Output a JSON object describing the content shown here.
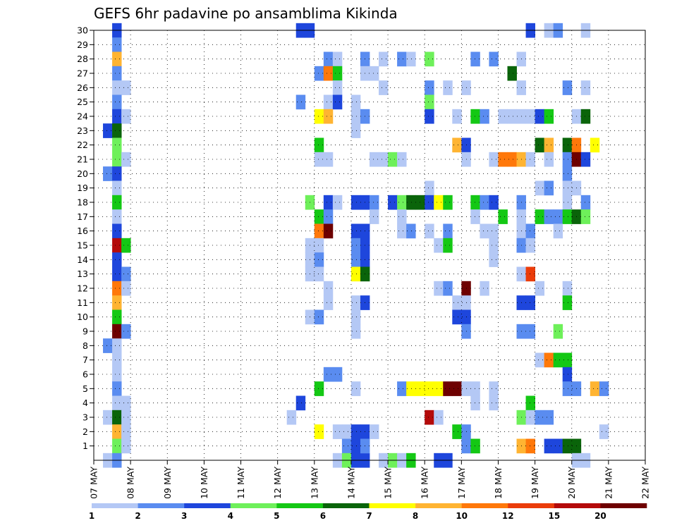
{
  "chart_data": {
    "type": "heatmap",
    "title": "GEFS 6hr padavine po ansamblima Kikinda",
    "xlabel": "",
    "ylabel": "",
    "x_ticks": [
      "07 MAY",
      "08 MAY",
      "09 MAY",
      "10 MAY",
      "11 MAY",
      "12 MAY",
      "13 MAY",
      "14 MAY",
      "15 MAY",
      "16 MAY",
      "17 MAY",
      "18 MAY",
      "19 MAY",
      "20 MAY",
      "21 MAY",
      "22 MAY"
    ],
    "y_ticks": [
      "1",
      "2",
      "3",
      "4",
      "5",
      "6",
      "7",
      "8",
      "9",
      "10",
      "11",
      "12",
      "13",
      "14",
      "15",
      "16",
      "17",
      "18",
      "19",
      "20",
      "21",
      "22",
      "23",
      "24",
      "25",
      "26",
      "27",
      "28",
      "29",
      "30"
    ],
    "xlim": [
      0,
      15
    ],
    "ylim": [
      0,
      30
    ],
    "grid": true,
    "legend": {
      "placement": "bottom",
      "labels": [
        "1",
        "2",
        "3",
        "4",
        "5",
        "6",
        "7",
        "8",
        "10",
        "12",
        "15",
        "20"
      ],
      "colors": [
        "#b4c8f5",
        "#5a8cf0",
        "#1e46dc",
        "#6ef05a",
        "#14c814",
        "#0a640a",
        "#ffff00",
        "#ffb432",
        "#ff780a",
        "#eb3c0a",
        "#b40a0a",
        "#6e0000"
      ]
    },
    "cells": [
      [
        0.625,
        30,
        3
      ],
      [
        0.625,
        29,
        2
      ],
      [
        0.625,
        28,
        8
      ],
      [
        0.625,
        27,
        2
      ],
      [
        0.625,
        26,
        1
      ],
      [
        0.875,
        26,
        1
      ],
      [
        0.625,
        25,
        2
      ],
      [
        0.625,
        24,
        3
      ],
      [
        0.875,
        24,
        1
      ],
      [
        0.375,
        23,
        3
      ],
      [
        0.625,
        23,
        6
      ],
      [
        0.625,
        22,
        4
      ],
      [
        0.625,
        21,
        4
      ],
      [
        0.875,
        21,
        1
      ],
      [
        0.375,
        20,
        2
      ],
      [
        0.625,
        20,
        3
      ],
      [
        0.625,
        19,
        1
      ],
      [
        0.625,
        18,
        5
      ],
      [
        0.625,
        17,
        1
      ],
      [
        0.625,
        16,
        3
      ],
      [
        0.625,
        15,
        11
      ],
      [
        0.875,
        15,
        5
      ],
      [
        0.625,
        14,
        3
      ],
      [
        0.625,
        13,
        3
      ],
      [
        0.875,
        13,
        2
      ],
      [
        0.625,
        12,
        9
      ],
      [
        0.875,
        12,
        1
      ],
      [
        0.625,
        11,
        8
      ],
      [
        0.625,
        10,
        5
      ],
      [
        0.625,
        9,
        12
      ],
      [
        0.875,
        9,
        2
      ],
      [
        0.375,
        8,
        2
      ],
      [
        0.625,
        8,
        1
      ],
      [
        0.625,
        7,
        1
      ],
      [
        0.625,
        6,
        1
      ],
      [
        0.625,
        5,
        2
      ],
      [
        0.625,
        4,
        1
      ],
      [
        0.875,
        4,
        1
      ],
      [
        0.375,
        3,
        1
      ],
      [
        0.625,
        3,
        6
      ],
      [
        0.875,
        3,
        1
      ],
      [
        0.625,
        2,
        8
      ],
      [
        0.875,
        2,
        1
      ],
      [
        0.625,
        1,
        4
      ],
      [
        0.875,
        1,
        1
      ],
      [
        0.375,
        0,
        1
      ],
      [
        0.625,
        0,
        2
      ],
      [
        5.625,
        30,
        3
      ],
      [
        5.875,
        30,
        3
      ],
      [
        6.375,
        28,
        2
      ],
      [
        6.625,
        28,
        1
      ],
      [
        6.125,
        27,
        2
      ],
      [
        6.375,
        27,
        9
      ],
      [
        6.625,
        27,
        5
      ],
      [
        6.625,
        26,
        1
      ],
      [
        5.625,
        25,
        2
      ],
      [
        6.375,
        25,
        1
      ],
      [
        6.625,
        25,
        3
      ],
      [
        6.125,
        24,
        7
      ],
      [
        6.375,
        24,
        8
      ],
      [
        6.125,
        22,
        5
      ],
      [
        6.125,
        21,
        1
      ],
      [
        6.375,
        21,
        1
      ],
      [
        5.875,
        18,
        4
      ],
      [
        6.375,
        18,
        3
      ],
      [
        6.625,
        18,
        1
      ],
      [
        6.125,
        17,
        5
      ],
      [
        6.375,
        17,
        2
      ],
      [
        6.125,
        16,
        9
      ],
      [
        6.375,
        16,
        12
      ],
      [
        5.875,
        15,
        1
      ],
      [
        6.125,
        15,
        1
      ],
      [
        5.875,
        14,
        1
      ],
      [
        6.125,
        14,
        2
      ],
      [
        5.875,
        13,
        1
      ],
      [
        6.125,
        13,
        1
      ],
      [
        6.375,
        12,
        1
      ],
      [
        6.375,
        11,
        1
      ],
      [
        5.875,
        10,
        1
      ],
      [
        6.125,
        10,
        2
      ],
      [
        6.375,
        6,
        2
      ],
      [
        6.625,
        6,
        2
      ],
      [
        6.125,
        5,
        5
      ],
      [
        5.625,
        4,
        3
      ],
      [
        5.375,
        3,
        1
      ],
      [
        6.125,
        2,
        7
      ],
      [
        6.625,
        2,
        1
      ],
      [
        6.875,
        2,
        1
      ],
      [
        6.875,
        1,
        2
      ],
      [
        6.625,
        0,
        1
      ],
      [
        6.875,
        0,
        4
      ],
      [
        7.125,
        0,
        3
      ],
      [
        7.375,
        0,
        3
      ],
      [
        7.375,
        28,
        2
      ],
      [
        7.875,
        28,
        1
      ],
      [
        8.375,
        28,
        2
      ],
      [
        8.625,
        28,
        1
      ],
      [
        7.375,
        27,
        1
      ],
      [
        7.625,
        27,
        1
      ],
      [
        7.875,
        26,
        1
      ],
      [
        7.125,
        25,
        1
      ],
      [
        7.125,
        24,
        1
      ],
      [
        7.375,
        24,
        2
      ],
      [
        7.125,
        23,
        1
      ],
      [
        7.625,
        21,
        1
      ],
      [
        7.875,
        21,
        1
      ],
      [
        8.125,
        21,
        4
      ],
      [
        8.375,
        21,
        1
      ],
      [
        7.125,
        18,
        3
      ],
      [
        7.375,
        18,
        3
      ],
      [
        7.625,
        18,
        2
      ],
      [
        8.125,
        18,
        3
      ],
      [
        8.375,
        18,
        4
      ],
      [
        8.625,
        18,
        6
      ],
      [
        8.875,
        18,
        6
      ],
      [
        7.625,
        17,
        1
      ],
      [
        8.375,
        17,
        1
      ],
      [
        7.125,
        16,
        3
      ],
      [
        7.375,
        16,
        3
      ],
      [
        8.375,
        16,
        1
      ],
      [
        8.625,
        16,
        2
      ],
      [
        7.125,
        15,
        2
      ],
      [
        7.375,
        15,
        3
      ],
      [
        7.125,
        14,
        2
      ],
      [
        7.375,
        14,
        3
      ],
      [
        7.125,
        13,
        7
      ],
      [
        7.375,
        13,
        6
      ],
      [
        7.125,
        11,
        1
      ],
      [
        7.375,
        11,
        3
      ],
      [
        7.125,
        10,
        1
      ],
      [
        7.125,
        9,
        1
      ],
      [
        7.125,
        5,
        1
      ],
      [
        8.375,
        5,
        2
      ],
      [
        8.625,
        5,
        7
      ],
      [
        8.875,
        5,
        7
      ],
      [
        7.125,
        2,
        3
      ],
      [
        7.375,
        2,
        3
      ],
      [
        7.625,
        2,
        1
      ],
      [
        7.125,
        1,
        3
      ],
      [
        7.375,
        1,
        2
      ],
      [
        7.875,
        0,
        1
      ],
      [
        8.125,
        0,
        4
      ],
      [
        8.375,
        0,
        1
      ],
      [
        8.625,
        0,
        5
      ],
      [
        9.375,
        0,
        3
      ],
      [
        9.625,
        0,
        3
      ],
      [
        9.125,
        28,
        4
      ],
      [
        10.375,
        28,
        2
      ],
      [
        10.875,
        28,
        2
      ],
      [
        9.125,
        26,
        2
      ],
      [
        9.625,
        26,
        1
      ],
      [
        10.125,
        26,
        1
      ],
      [
        9.125,
        25,
        4
      ],
      [
        9.125,
        24,
        3
      ],
      [
        9.875,
        24,
        1
      ],
      [
        10.375,
        24,
        5
      ],
      [
        10.625,
        24,
        2
      ],
      [
        9.875,
        22,
        8
      ],
      [
        10.125,
        22,
        3
      ],
      [
        10.125,
        21,
        1
      ],
      [
        9.125,
        19,
        1
      ],
      [
        9.125,
        18,
        3
      ],
      [
        9.375,
        18,
        7
      ],
      [
        9.625,
        18,
        5
      ],
      [
        10.375,
        18,
        5
      ],
      [
        10.625,
        18,
        2
      ],
      [
        10.875,
        18,
        3
      ],
      [
        10.375,
        17,
        1
      ],
      [
        9.125,
        16,
        1
      ],
      [
        9.625,
        16,
        2
      ],
      [
        10.625,
        16,
        1
      ],
      [
        10.875,
        16,
        1
      ],
      [
        9.375,
        15,
        1
      ],
      [
        9.625,
        15,
        5
      ],
      [
        10.875,
        15,
        1
      ],
      [
        10.875,
        14,
        1
      ],
      [
        9.375,
        12,
        1
      ],
      [
        9.625,
        12,
        2
      ],
      [
        10.125,
        12,
        12
      ],
      [
        10.625,
        12,
        1
      ],
      [
        9.875,
        11,
        1
      ],
      [
        10.125,
        11,
        1
      ],
      [
        9.875,
        10,
        3
      ],
      [
        10.125,
        10,
        3
      ],
      [
        10.125,
        9,
        2
      ],
      [
        9.125,
        5,
        7
      ],
      [
        9.375,
        5,
        7
      ],
      [
        9.625,
        5,
        12
      ],
      [
        9.875,
        5,
        12
      ],
      [
        10.125,
        5,
        1
      ],
      [
        10.375,
        5,
        1
      ],
      [
        10.875,
        5,
        1
      ],
      [
        10.375,
        4,
        1
      ],
      [
        10.875,
        4,
        1
      ],
      [
        9.125,
        3,
        11
      ],
      [
        9.375,
        3,
        1
      ],
      [
        9.875,
        2,
        5
      ],
      [
        10.125,
        2,
        2
      ],
      [
        10.125,
        1,
        2
      ],
      [
        10.375,
        1,
        5
      ],
      [
        11.875,
        30,
        3
      ],
      [
        12.375,
        30,
        1
      ],
      [
        12.625,
        30,
        2
      ],
      [
        13.375,
        30,
        1
      ],
      [
        11.625,
        28,
        1
      ],
      [
        11.375,
        27,
        6
      ],
      [
        11.625,
        26,
        1
      ],
      [
        12.875,
        26,
        2
      ],
      [
        13.375,
        26,
        1
      ],
      [
        11.125,
        24,
        1
      ],
      [
        11.375,
        24,
        1
      ],
      [
        11.625,
        24,
        1
      ],
      [
        11.875,
        24,
        1
      ],
      [
        12.125,
        24,
        3
      ],
      [
        12.375,
        24,
        5
      ],
      [
        13.125,
        24,
        1
      ],
      [
        13.375,
        24,
        6
      ],
      [
        12.125,
        22,
        6
      ],
      [
        12.375,
        22,
        8
      ],
      [
        12.875,
        22,
        6
      ],
      [
        13.125,
        22,
        9
      ],
      [
        13.625,
        22,
        7
      ],
      [
        10.875,
        21,
        1
      ],
      [
        11.125,
        21,
        9
      ],
      [
        11.375,
        21,
        9
      ],
      [
        11.625,
        21,
        8
      ],
      [
        11.875,
        21,
        1
      ],
      [
        12.375,
        21,
        1
      ],
      [
        12.875,
        21,
        2
      ],
      [
        13.125,
        21,
        12
      ],
      [
        13.375,
        21,
        3
      ],
      [
        12.875,
        20,
        2
      ],
      [
        12.125,
        19,
        1
      ],
      [
        12.375,
        19,
        2
      ],
      [
        12.875,
        19,
        1
      ],
      [
        13.125,
        19,
        1
      ],
      [
        11.625,
        18,
        2
      ],
      [
        12.875,
        18,
        1
      ],
      [
        13.375,
        18,
        2
      ],
      [
        11.125,
        17,
        5
      ],
      [
        11.625,
        17,
        1
      ],
      [
        12.125,
        17,
        5
      ],
      [
        12.375,
        17,
        2
      ],
      [
        12.625,
        17,
        2
      ],
      [
        12.875,
        17,
        5
      ],
      [
        13.125,
        17,
        6
      ],
      [
        13.375,
        17,
        4
      ],
      [
        11.625,
        16,
        1
      ],
      [
        11.875,
        16,
        2
      ],
      [
        12.625,
        16,
        1
      ],
      [
        11.625,
        15,
        2
      ],
      [
        11.875,
        15,
        1
      ],
      [
        11.625,
        13,
        1
      ],
      [
        11.875,
        13,
        10
      ],
      [
        12.125,
        12,
        1
      ],
      [
        12.875,
        12,
        1
      ],
      [
        11.625,
        11,
        3
      ],
      [
        11.875,
        11,
        3
      ],
      [
        12.875,
        11,
        5
      ],
      [
        11.625,
        9,
        2
      ],
      [
        11.875,
        9,
        2
      ],
      [
        12.625,
        9,
        4
      ],
      [
        12.125,
        7,
        1
      ],
      [
        12.375,
        7,
        9
      ],
      [
        12.625,
        7,
        5
      ],
      [
        12.875,
        7,
        5
      ],
      [
        12.875,
        6,
        3
      ],
      [
        12.875,
        5,
        2
      ],
      [
        13.125,
        5,
        2
      ],
      [
        13.625,
        5,
        8
      ],
      [
        13.875,
        5,
        2
      ],
      [
        11.875,
        4,
        5
      ],
      [
        11.625,
        3,
        4
      ],
      [
        11.875,
        3,
        1
      ],
      [
        12.125,
        3,
        2
      ],
      [
        12.375,
        3,
        2
      ],
      [
        13.875,
        2,
        1
      ],
      [
        11.625,
        1,
        8
      ],
      [
        11.875,
        1,
        9
      ],
      [
        12.375,
        1,
        3
      ],
      [
        12.625,
        1,
        3
      ],
      [
        12.875,
        1,
        6
      ],
      [
        13.125,
        1,
        6
      ],
      [
        13.125,
        0,
        1
      ],
      [
        13.375,
        0,
        1
      ]
    ]
  }
}
